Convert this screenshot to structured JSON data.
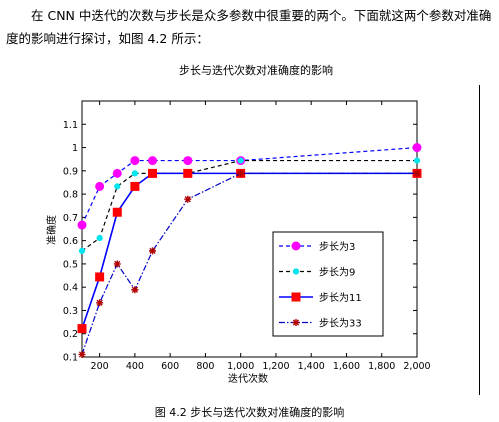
{
  "paragraph": {
    "line1": "在 CNN 中迭代的次数与步长是众多参数中很重要的两个。下面就这两个参数对准确",
    "line2": "度的影响进行探讨，如图 4.2 所示："
  },
  "caption": "图 4.2  步长与迭代次数对准确度的影响",
  "chart_data": {
    "type": "line",
    "title": "步长与迭代次数对准确度的影响",
    "xlabel": "迭代次数",
    "ylabel": "准确度",
    "xlim": [
      100,
      2000
    ],
    "ylim": [
      0.1,
      1.2
    ],
    "xticks": [
      200,
      400,
      600,
      800,
      1000,
      1200,
      1400,
      1600,
      1800,
      2000
    ],
    "xtick_labels": [
      "200",
      "400",
      "600",
      "800",
      "1,000",
      "1,200",
      "1,400",
      "1,600",
      "1,800",
      "2,000"
    ],
    "yticks": [
      0.1,
      0.2,
      0.3,
      0.4,
      0.5,
      0.6,
      0.7,
      0.8,
      0.9,
      1.0,
      1.1
    ],
    "ytick_labels": [
      "0.1",
      "0.2",
      "0.3",
      "0.4",
      "0.5",
      "0.6",
      "0.7",
      "0.8",
      "0.9",
      "1",
      "1.1"
    ],
    "grid": false,
    "legend_position": "right-center",
    "series": [
      {
        "name": "步长为3",
        "color": "#0000ff",
        "marker": "circle",
        "marker_color": "#ff00ff",
        "dash": "dashed",
        "x": [
          100,
          200,
          300,
          400,
          500,
          700,
          1000,
          2000
        ],
        "y": [
          0.667,
          0.833,
          0.889,
          0.944,
          0.944,
          0.944,
          0.944,
          1.0
        ]
      },
      {
        "name": "步长为9",
        "color": "#000000",
        "marker": "point",
        "marker_color": "#00e5ee",
        "dash": "dashed",
        "x": [
          100,
          200,
          300,
          400,
          500,
          700,
          1000,
          2000
        ],
        "y": [
          0.556,
          0.611,
          0.833,
          0.889,
          0.889,
          0.889,
          0.944,
          0.944
        ]
      },
      {
        "name": "步长为11",
        "color": "#0000ff",
        "marker": "square",
        "marker_color": "#ff0000",
        "dash": "solid",
        "x": [
          100,
          200,
          300,
          400,
          500,
          700,
          1000,
          2000
        ],
        "y": [
          0.222,
          0.444,
          0.722,
          0.833,
          0.889,
          0.889,
          0.889,
          0.889
        ]
      },
      {
        "name": "步长为33",
        "color": "#0000cc",
        "marker": "star",
        "marker_color": "#b00000",
        "dash": "dashdot",
        "x": [
          100,
          200,
          300,
          400,
          500,
          700,
          1000,
          2000
        ],
        "y": [
          0.111,
          0.333,
          0.5,
          0.389,
          0.556,
          0.778,
          0.889,
          0.889
        ]
      }
    ]
  }
}
